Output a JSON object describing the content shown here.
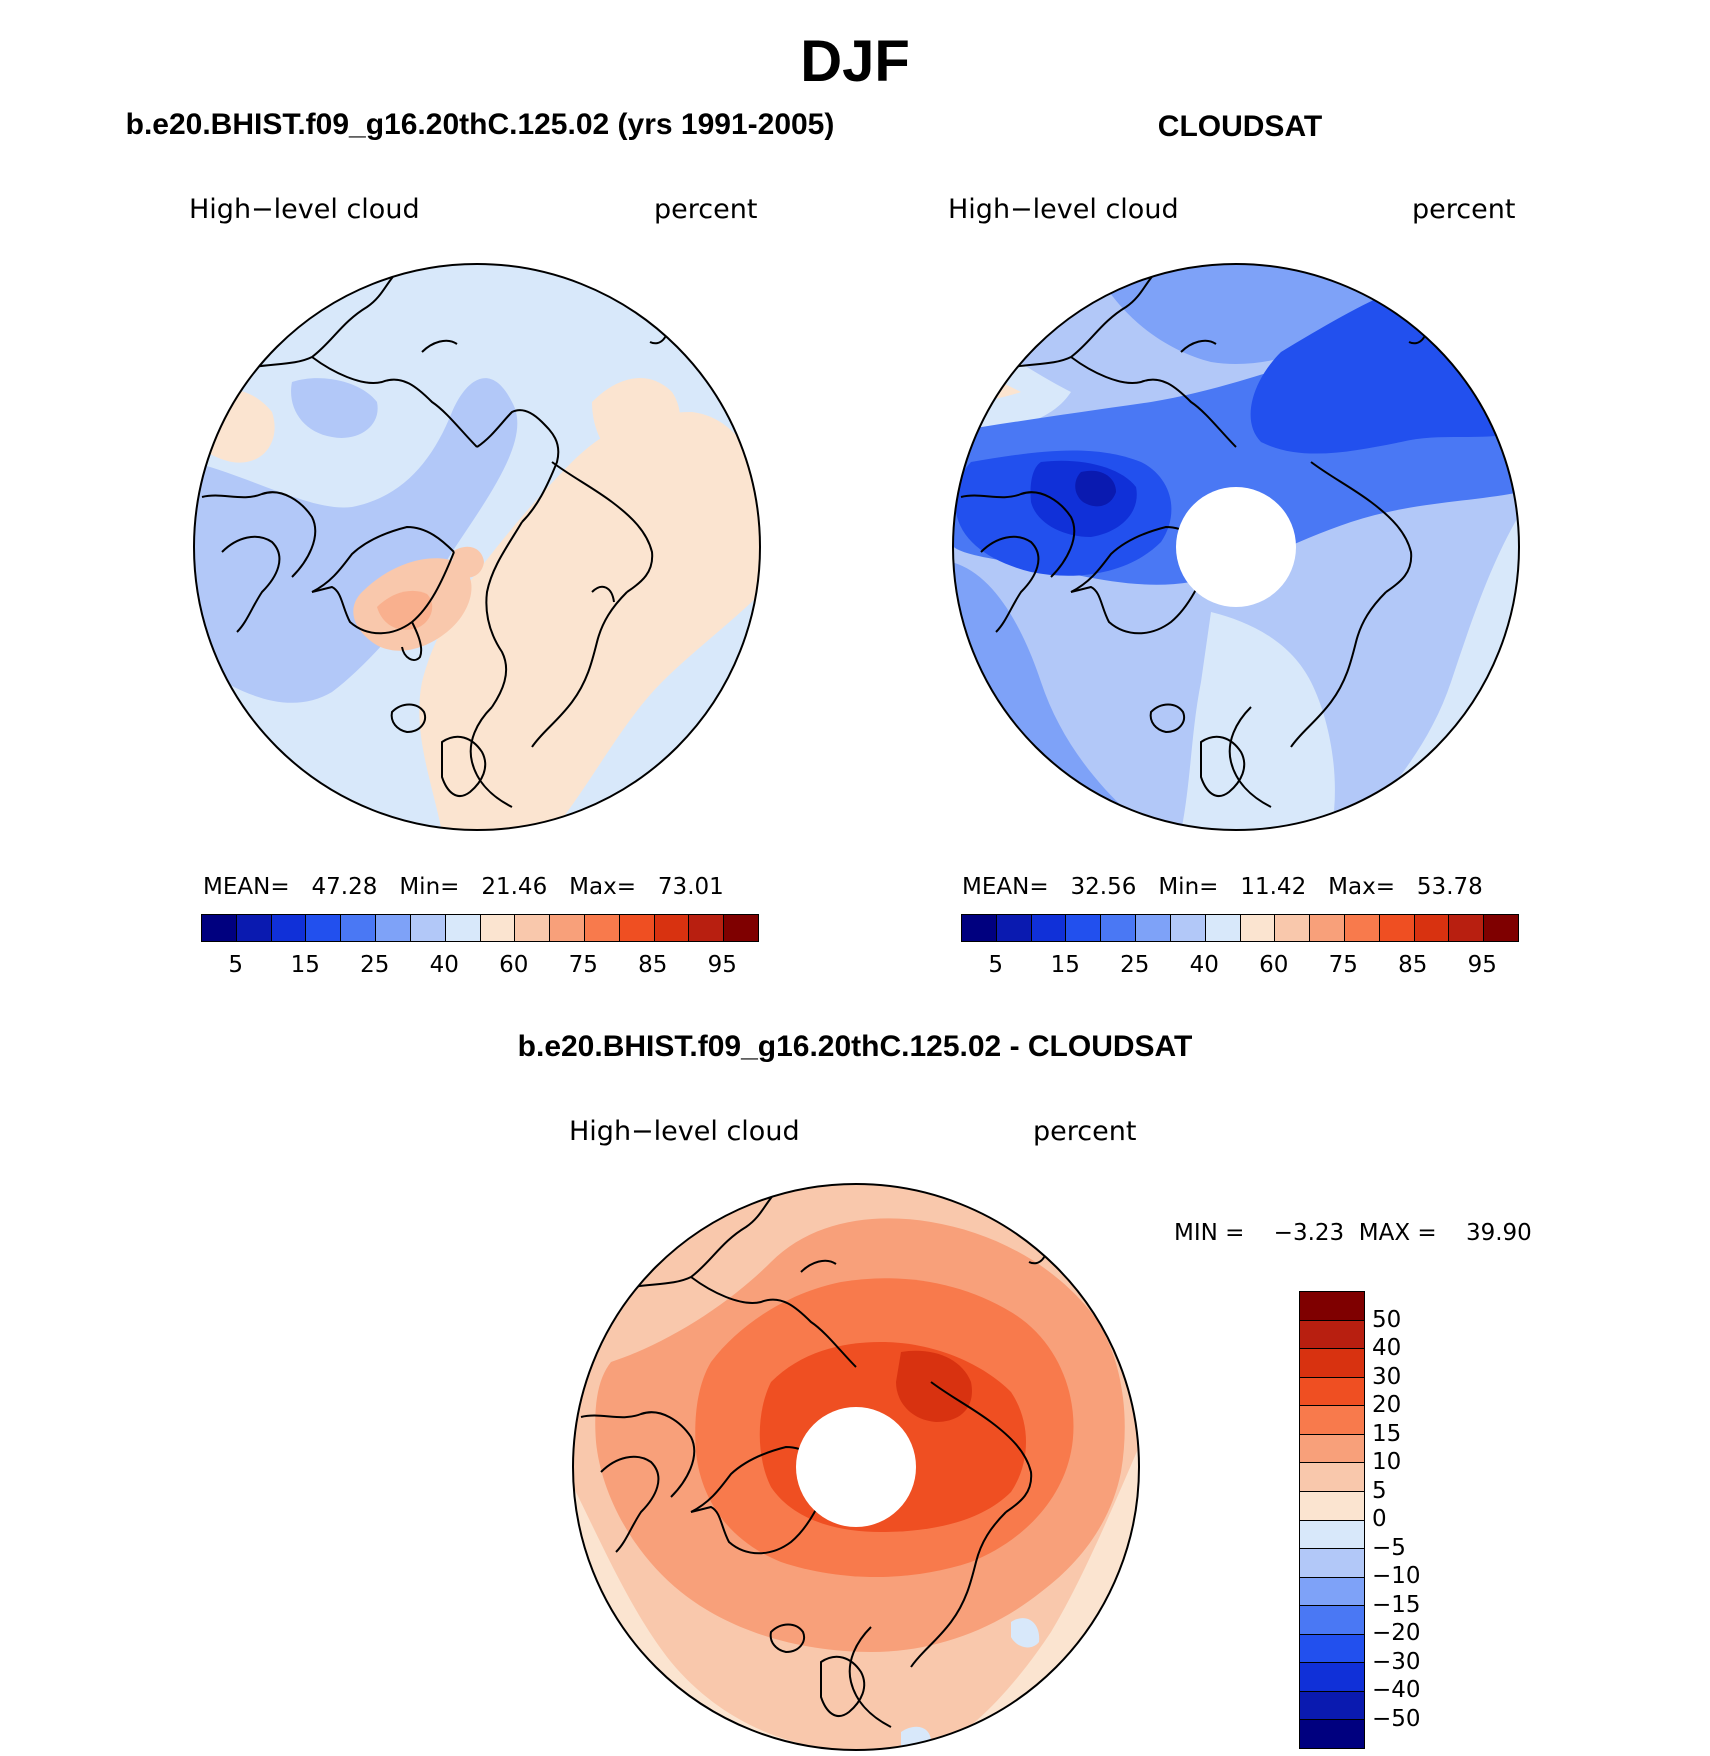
{
  "figure": {
    "title": "DJF"
  },
  "panels": {
    "model": {
      "title": "b.e20.BHIST.f09_g16.20thC.125.02 (yrs 1991-2005)",
      "left_label": "High−level cloud",
      "right_label": "percent",
      "stats": {
        "mean_label": "MEAN=",
        "mean": "47.28",
        "min_label": "Min=",
        "min": "21.46",
        "max_label": "Max=",
        "max": "73.01"
      }
    },
    "obs": {
      "title": "CLOUDSAT",
      "left_label": "High−level cloud",
      "right_label": "percent",
      "stats": {
        "mean_label": "MEAN=",
        "mean": "32.56",
        "min_label": "Min=",
        "min": "11.42",
        "max_label": "Max=",
        "max": "53.78"
      }
    },
    "diff": {
      "title": "b.e20.BHIST.f09_g16.20thC.125.02 - CLOUDSAT",
      "left_label": "High−level cloud",
      "right_label": "percent",
      "stats": {
        "min_label": "MIN =",
        "min": "−3.23",
        "max_label": "MAX =",
        "max": "39.90"
      }
    }
  },
  "colorbar_abs": {
    "colors": [
      "#00007f",
      "#0a1ab0",
      "#1030d8",
      "#2250ee",
      "#4a78f4",
      "#7ea2f8",
      "#b2c8f8",
      "#d8e8fa",
      "#fbe4d0",
      "#f9c8ac",
      "#f8a07a",
      "#f87a4c",
      "#ef4f22",
      "#d83210",
      "#b81f10",
      "#7f0000"
    ],
    "tick_labels": [
      "5",
      "15",
      "25",
      "40",
      "60",
      "75",
      "85",
      "95"
    ]
  },
  "colorbar_diff": {
    "colors": [
      "#7f0000",
      "#b81f10",
      "#d83210",
      "#ef4f22",
      "#f87a4c",
      "#f8a07a",
      "#f9c8ac",
      "#fbe4d0",
      "#d8e8fa",
      "#b2c8f8",
      "#7ea2f8",
      "#4a78f4",
      "#2250ee",
      "#1030d8",
      "#0a1ab0",
      "#00007f"
    ],
    "tick_labels": [
      "50",
      "40",
      "30",
      "20",
      "15",
      "10",
      "5",
      "0",
      "−5",
      "−10",
      "−15",
      "−20",
      "−30",
      "−40",
      "−50"
    ]
  },
  "colors": {
    "map_outline": "#000000",
    "polar_hole": "#ffffff"
  }
}
